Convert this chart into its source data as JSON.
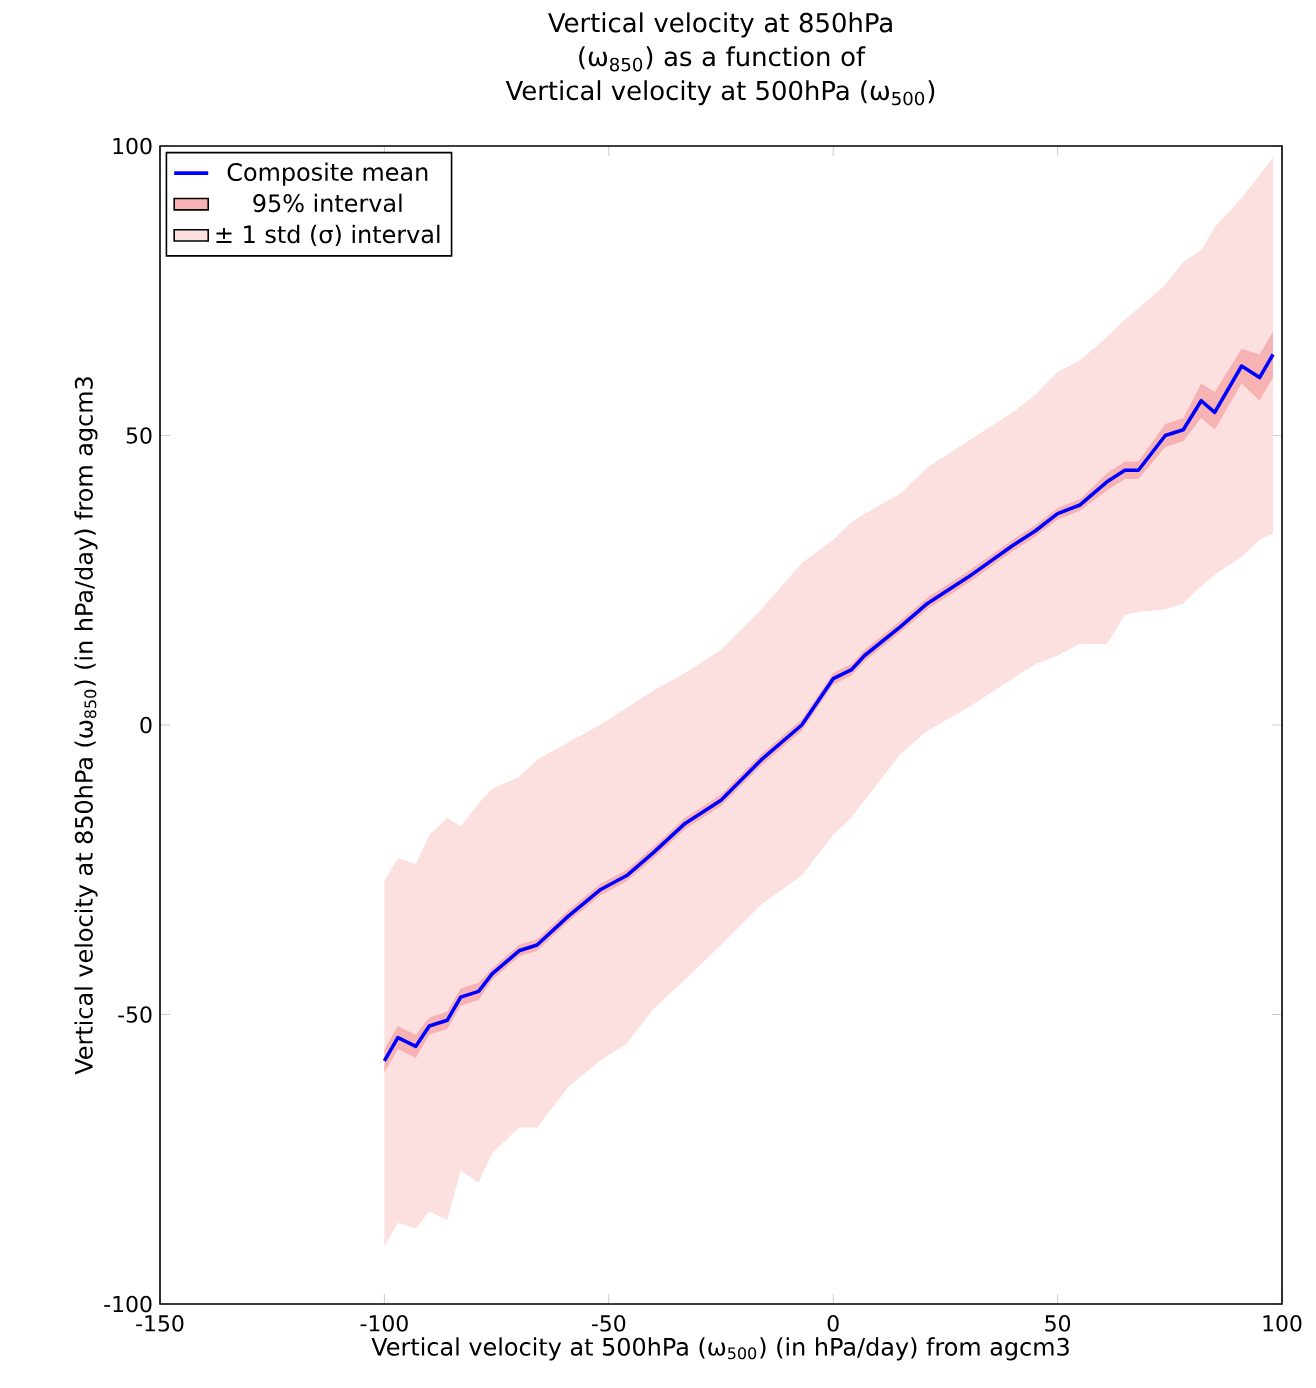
{
  "chart_data": {
    "type": "line",
    "title": "Vertical velocity at 850hPa (ω$_{850}$) as a function of",
    "subtitle": "Vertical velocity at 500hPa (ω$_{500}$)",
    "xlabel": "Vertical velocity at 500hPa (ω$_{500}$) (in hPa/day) from agcm3",
    "ylabel": "Vertical velocity at 850hPa (ω$_{850}$) (in hPa/day) from agcm3",
    "x": [
      -100,
      -97,
      -93,
      -90,
      -86,
      -83,
      -79,
      -76,
      -70,
      -66,
      -59,
      -52,
      -46,
      -40,
      -33,
      -25,
      -16,
      -7,
      0,
      4,
      7,
      15,
      21,
      30,
      40,
      45,
      50,
      55,
      61,
      65,
      68,
      74,
      78,
      82,
      85,
      91,
      95,
      98
    ],
    "series": [
      {
        "name": "± 1 std (σ) interval",
        "type": "area",
        "color": "#fce0e0",
        "values": [
          null,
          null,
          null,
          null,
          null,
          null,
          null,
          null,
          null,
          null,
          null,
          null,
          null,
          null,
          null,
          null,
          null,
          null,
          null,
          null,
          null,
          null,
          null,
          null,
          null,
          null,
          null,
          null,
          null,
          null,
          null,
          null,
          null,
          null,
          null,
          null,
          null,
          null
        ],
        "lower": [
          -90,
          -86,
          -87,
          -84,
          -85.5,
          -77,
          -79,
          -74,
          -69.5,
          -69.5,
          -62.5,
          -58,
          -55,
          -49,
          -44,
          -38,
          -31,
          -26,
          -19,
          -16,
          -13,
          -5,
          -1,
          3,
          8,
          10.5,
          12,
          14,
          14,
          19,
          19.5,
          20,
          21,
          24,
          26,
          29,
          32,
          33
        ],
        "upper": [
          -27,
          -23,
          -24,
          -19,
          -16,
          -17.5,
          -13.5,
          -11,
          -9,
          -6,
          -3,
          0,
          3,
          6,
          9,
          13,
          20,
          28,
          32,
          35,
          36.5,
          40,
          44.5,
          49,
          54,
          57,
          61,
          63,
          67,
          70,
          72,
          76,
          80,
          82,
          86,
          91,
          95,
          98
        ]
      },
      {
        "name": "95% interval",
        "type": "area",
        "color": "#f7b3b3",
        "values": [
          null,
          null,
          null,
          null,
          null,
          null,
          null,
          null,
          null,
          null,
          null,
          null,
          null,
          null,
          null,
          null,
          null,
          null,
          null,
          null,
          null,
          null,
          null,
          null,
          null,
          null,
          null,
          null,
          null,
          null,
          null,
          null,
          null,
          null,
          null,
          null,
          null,
          null
        ],
        "lower": [
          -60,
          -56,
          -57.5,
          -53.5,
          -52.5,
          -48.5,
          -47.5,
          -44,
          -40,
          -39,
          -34,
          -29.5,
          -27,
          -23,
          -18,
          -14,
          -7,
          -1,
          7,
          8.5,
          11,
          16,
          20,
          24.5,
          30,
          32.5,
          35.5,
          37,
          40.5,
          42.5,
          42.5,
          48,
          49,
          53,
          51,
          59,
          56,
          60
        ],
        "upper": [
          -56,
          -52,
          -53.5,
          -50.5,
          -49.5,
          -45.5,
          -44.5,
          -42,
          -38,
          -37,
          -32,
          -27.5,
          -25,
          -21,
          -16,
          -12,
          -5,
          1,
          9,
          10.5,
          13,
          18,
          22,
          26.5,
          32,
          34.5,
          37.5,
          39,
          43.5,
          45.5,
          45.5,
          52,
          53,
          59,
          57.5,
          65,
          64,
          68
        ]
      },
      {
        "name": "Composite mean",
        "color": "#0000ff",
        "values": [
          -58,
          -54,
          -55.5,
          -52,
          -51,
          -47,
          -46,
          -43,
          -39,
          -38,
          -33,
          -28.5,
          -26,
          -22,
          -17,
          -13,
          -6,
          0,
          8,
          9.5,
          12,
          17,
          21,
          25.5,
          31,
          33.5,
          36.5,
          38,
          42,
          44,
          44,
          50,
          51,
          56,
          54,
          62,
          60,
          64
        ]
      }
    ],
    "xlim": [
      -150,
      100
    ],
    "xticks": [
      -150,
      -100,
      -50,
      0,
      50,
      100
    ],
    "ylim": [
      -100,
      100
    ],
    "yticks": [
      -100,
      -50,
      0,
      50,
      100
    ],
    "legend": "top left",
    "grid": false,
    "marker": "none",
    "line_style": "solid"
  }
}
